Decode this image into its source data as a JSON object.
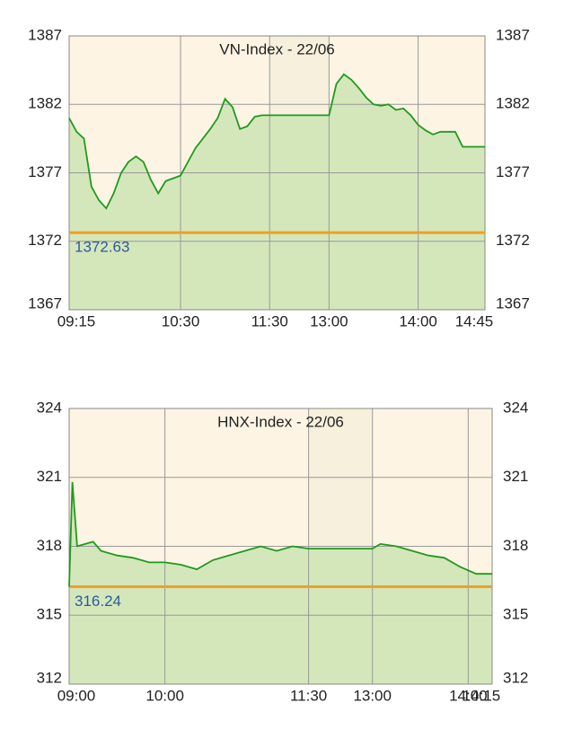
{
  "chart_data": [
    {
      "type": "line",
      "title": "VN-Index - 22/06",
      "x": [
        "09:15",
        "09:20",
        "09:25",
        "09:30",
        "09:35",
        "09:40",
        "09:45",
        "09:50",
        "09:55",
        "10:00",
        "10:05",
        "10:10",
        "10:15",
        "10:20",
        "10:25",
        "10:30",
        "10:35",
        "10:40",
        "10:45",
        "10:50",
        "10:55",
        "11:00",
        "11:05",
        "11:10",
        "11:15",
        "11:20",
        "11:25",
        "11:30",
        "13:00",
        "13:05",
        "13:10",
        "13:15",
        "13:20",
        "13:25",
        "13:30",
        "13:35",
        "13:40",
        "13:45",
        "13:50",
        "13:55",
        "14:00",
        "14:05",
        "14:10",
        "14:15",
        "14:20",
        "14:25",
        "14:30",
        "14:45"
      ],
      "series": [
        {
          "color": "#1f9a1f",
          "values": [
            1381.0,
            1380.0,
            1379.5,
            1376.0,
            1375.0,
            1374.4,
            1375.5,
            1377.0,
            1377.8,
            1378.2,
            1377.8,
            1376.5,
            1375.5,
            1376.4,
            1376.6,
            1376.8,
            1377.8,
            1378.8,
            1379.5,
            1380.2,
            1381.0,
            1382.4,
            1381.8,
            1380.2,
            1380.4,
            1381.1,
            1381.2,
            1381.2,
            1381.2,
            1383.5,
            1384.2,
            1383.8,
            1383.2,
            1382.5,
            1382.0,
            1381.9,
            1382.0,
            1381.6,
            1381.7,
            1381.2,
            1380.5,
            1380.1,
            1379.8,
            1380.0,
            1380.0,
            1380.0,
            1378.9,
            1378.9
          ]
        }
      ],
      "reference_line": 1372.63,
      "xticks": [
        "09:15",
        "10:30",
        "11:30",
        "13:00",
        "14:00",
        "14:45"
      ],
      "ylim": [
        1367,
        1387
      ],
      "yticks": [
        1367,
        1372,
        1377,
        1382,
        1387
      ],
      "grid": true
    },
    {
      "type": "line",
      "title": "HNX-Index - 22/06",
      "x": [
        "09:00",
        "09:02",
        "09:05",
        "09:10",
        "09:15",
        "09:20",
        "09:30",
        "09:40",
        "09:50",
        "10:00",
        "10:10",
        "10:20",
        "10:30",
        "10:40",
        "10:50",
        "11:00",
        "11:10",
        "11:20",
        "11:30",
        "13:00",
        "13:05",
        "13:15",
        "13:25",
        "13:35",
        "13:45",
        "13:55",
        "14:05",
        "14:10",
        "14:15"
      ],
      "series": [
        {
          "color": "#1f9a1f",
          "values": [
            316.24,
            320.8,
            318.0,
            318.1,
            318.2,
            317.8,
            317.6,
            317.5,
            317.3,
            317.3,
            317.2,
            317.0,
            317.4,
            317.6,
            317.8,
            318.0,
            317.8,
            318.0,
            317.9,
            317.9,
            318.1,
            318.0,
            317.8,
            317.6,
            317.5,
            317.1,
            316.8,
            316.8,
            316.8
          ]
        }
      ],
      "reference_line": 316.24,
      "xticks": [
        "09:00",
        "10:00",
        "11:30",
        "13:00",
        "14:00",
        "14:15"
      ],
      "ylim": [
        312,
        324
      ],
      "yticks": [
        312,
        315,
        318,
        321,
        324
      ],
      "grid": true
    }
  ]
}
